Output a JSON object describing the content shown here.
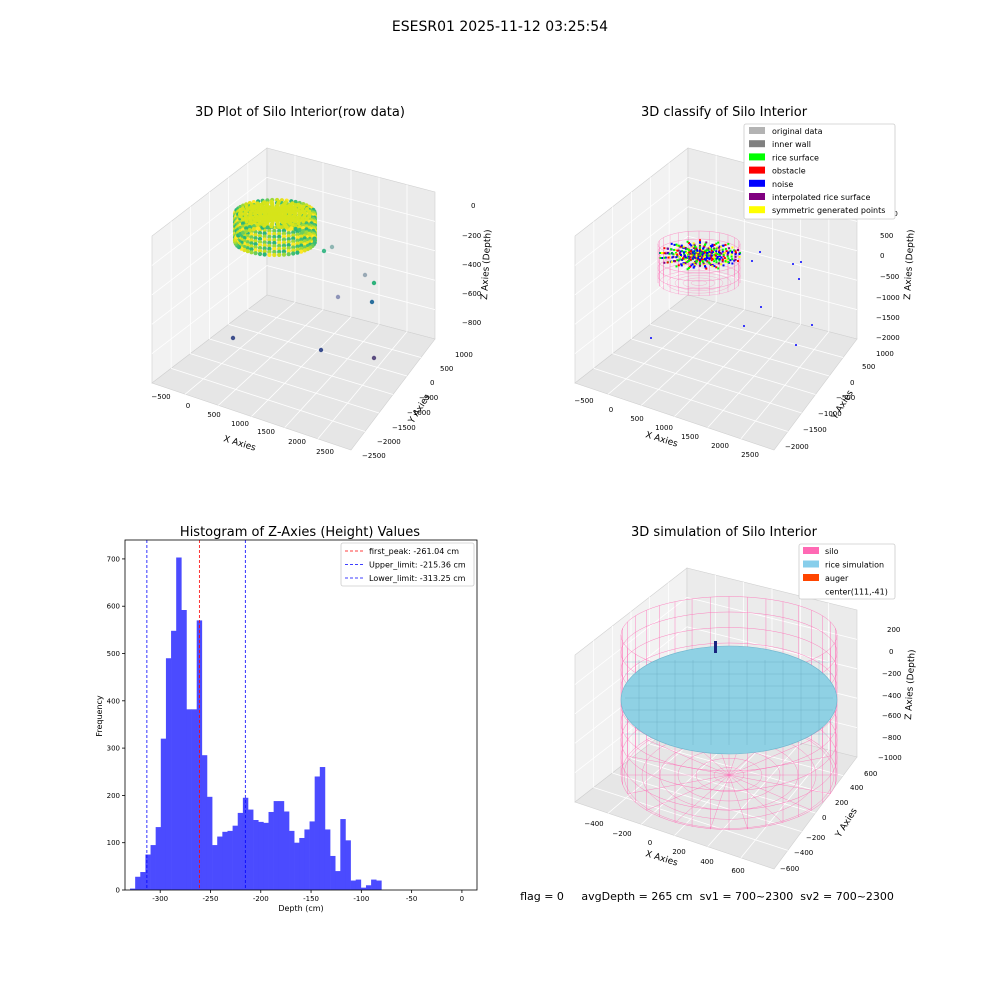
{
  "figure": {
    "suptitle": "ESESR01 2025-11-12 03:25:54",
    "footer": "flag = 0     avgDepth = 265 cm  sv1 = 700~2300  sv2 = 700~2300"
  },
  "chart_data": [
    {
      "type": "scatter",
      "title": "3D Plot of Silo Interior(row data)",
      "xlabel": "X Axies",
      "ylabel": "Y Axies",
      "zlabel": "Z Axies (Depth)",
      "xticks": [
        "−500",
        "0",
        "500",
        "1000",
        "1500",
        "2000",
        "2500"
      ],
      "yticks": [
        "−2500",
        "−2000",
        "−1500",
        "−1000",
        "−500",
        "0",
        "500",
        "1000"
      ],
      "zticks": [
        "0",
        "−200",
        "−400",
        "−600",
        "−800"
      ],
      "cluster": {
        "center_x": 111,
        "center_y": -41,
        "depth_min": -313,
        "depth_max": -215
      },
      "outliers": [
        {
          "x": 1000,
          "y": 1150,
          "z": -300
        },
        {
          "x": 1300,
          "y": 1050,
          "z": -420
        },
        {
          "x": 1450,
          "y": 900,
          "z": -480
        },
        {
          "x": 1600,
          "y": 700,
          "z": -600
        },
        {
          "x": 1100,
          "y": 500,
          "z": -640
        },
        {
          "x": -400,
          "y": -300,
          "z": -800
        },
        {
          "x": 900,
          "y": -600,
          "z": -830
        },
        {
          "x": 1600,
          "y": -700,
          "z": -850
        },
        {
          "x": 1750,
          "y": -1000,
          "z": -870
        }
      ]
    },
    {
      "type": "scatter",
      "title": "3D classify of Silo Interior",
      "xlabel": "X Axies",
      "ylabel": "Y Axies",
      "zlabel": "Z Axies (Depth)",
      "xticks": [
        "−500",
        "0",
        "500",
        "1000",
        "1500",
        "2000",
        "2500"
      ],
      "yticks": [
        "−2000",
        "−1500",
        "−1000",
        "−500",
        "0",
        "500",
        "1000"
      ],
      "zticks": [
        "1000",
        "500",
        "0",
        "−500",
        "−1000",
        "−1500",
        "−2000"
      ],
      "legend": [
        {
          "label": "original data",
          "color": "#b3b3b3"
        },
        {
          "label": "inner wall",
          "color": "#808080"
        },
        {
          "label": "rice surface",
          "color": "#00ff00"
        },
        {
          "label": "obstacle",
          "color": "#ff0000"
        },
        {
          "label": "noise",
          "color": "#0000ff"
        },
        {
          "label": "interpolated rice surface",
          "color": "#800080"
        },
        {
          "label": "symmetric generated points",
          "color": "#ffff00"
        }
      ]
    },
    {
      "type": "bar",
      "title": "Histogram of Z-Axies (Height) Values",
      "xlabel": "Depth (cm)",
      "ylabel": "Frequency",
      "xlim": [
        -335,
        15
      ],
      "ylim": [
        0,
        740
      ],
      "xticks": [
        -300,
        -250,
        -200,
        -150,
        -100,
        -50,
        0
      ],
      "yticks": [
        0,
        100,
        200,
        300,
        400,
        500,
        600,
        700
      ],
      "bar_color": "#4b4bff",
      "bins_start": -330,
      "bin_width": 5.1,
      "values": [
        3,
        28,
        38,
        75,
        95,
        133,
        320,
        490,
        548,
        703,
        592,
        382,
        382,
        570,
        285,
        197,
        95,
        113,
        123,
        125,
        136,
        163,
        195,
        170,
        148,
        144,
        142,
        165,
        188,
        188,
        166,
        125,
        100,
        110,
        128,
        145,
        240,
        260,
        128,
        72,
        40,
        150,
        105,
        20,
        22,
        5,
        10,
        22,
        20
      ],
      "vlines": [
        {
          "x": -261.04,
          "color": "#ff0000",
          "label": "first_peak: -261.04 cm"
        },
        {
          "x": -215.36,
          "color": "#0000ff",
          "label": "Upper_limit: -215.36 cm"
        },
        {
          "x": -313.25,
          "color": "#0000ff",
          "label": "Lower_limit: -313.25 cm"
        }
      ],
      "legend_placement": "top-right"
    },
    {
      "type": "surface",
      "title": "3D simulation of Silo Interior",
      "xlabel": "X Axies",
      "ylabel": "Y Axies",
      "zlabel": "Z Axies (Depth)",
      "xticks": [
        "−400",
        "−200",
        "0",
        "200",
        "400",
        "600"
      ],
      "yticks": [
        "−600",
        "−400",
        "−200",
        "0",
        "200",
        "400",
        "600"
      ],
      "zticks": [
        "200",
        "0",
        "−200",
        "−400",
        "−600",
        "−800",
        "−1000"
      ],
      "legend": [
        {
          "label": "silo",
          "color": "#ff69b4"
        },
        {
          "label": "rice simulation",
          "color": "#87ceeb"
        },
        {
          "label": "auger",
          "color": "#ff4500"
        },
        {
          "label": "center(111,-41)",
          "color": ""
        }
      ]
    }
  ]
}
